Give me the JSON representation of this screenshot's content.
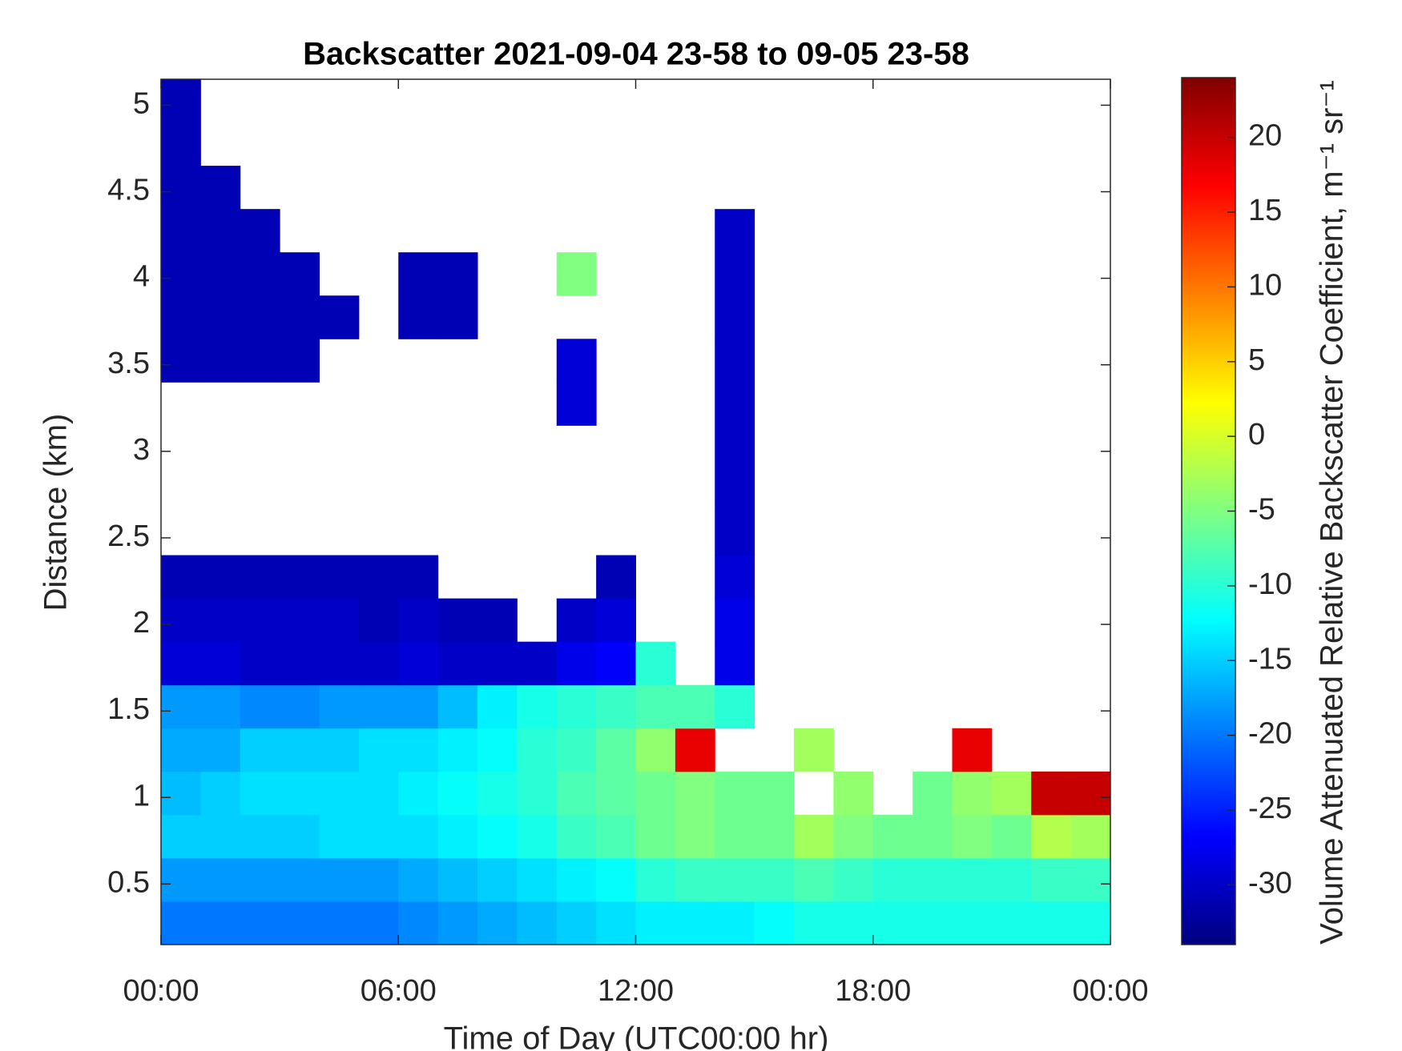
{
  "chart_data": {
    "type": "heatmap",
    "title": "Backscatter 2021-09-04 23-58 to 09-05 23-58",
    "xlabel": "Time of Day (UTC00:00 hr)",
    "ylabel": "Distance (km)",
    "colorbar_label": "Volume Attenuated Relative Backscatter Coefficient, m⁻¹ sr⁻¹",
    "colormap": "jet",
    "xlim": [
      0,
      24
    ],
    "xticks": [
      {
        "value": 0,
        "label": "00:00"
      },
      {
        "value": 6,
        "label": "06:00"
      },
      {
        "value": 12,
        "label": "12:00"
      },
      {
        "value": 18,
        "label": "18:00"
      },
      {
        "value": 24,
        "label": "00:00"
      }
    ],
    "ylim": [
      0.15,
      5.15
    ],
    "yticks": [
      0.5,
      1,
      1.5,
      2,
      2.5,
      3,
      3.5,
      4,
      4.5,
      5
    ],
    "clim": [
      -34,
      24
    ],
    "cticks": [
      -30,
      -25,
      -20,
      -15,
      -10,
      -5,
      0,
      5,
      10,
      15,
      20
    ],
    "x": [
      0.5,
      1.5,
      2.5,
      3.5,
      4.5,
      5.5,
      6.5,
      7.5,
      8.5,
      9.5,
      10.5,
      11.5,
      12.5,
      13.5,
      14.5,
      15.5,
      16.5,
      17.5,
      18.5,
      19.5,
      20.5,
      21.5,
      22.5,
      23.5
    ],
    "y": [
      0.275,
      0.525,
      0.775,
      1.025,
      1.275,
      1.525,
      1.775,
      2.025,
      2.275,
      2.525,
      2.775,
      3.025,
      3.275,
      3.525,
      3.775,
      4.025,
      4.275,
      4.525,
      4.775,
      5.025
    ],
    "z": [
      [
        -20,
        -20,
        -20,
        -20,
        -20,
        -20,
        -19,
        -18,
        -17,
        -16,
        -15,
        -14,
        -13,
        -13,
        -13,
        -12,
        -11,
        -11,
        -11,
        -11,
        -11,
        -11,
        -11,
        -11
      ],
      [
        -18,
        -18,
        -18,
        -18,
        -18,
        -18,
        -17,
        -16,
        -15,
        -14,
        -13,
        -12,
        -10,
        -9,
        -9,
        -9,
        -8,
        -9,
        -10,
        -10,
        -10,
        -10,
        -9,
        -9
      ],
      [
        -15,
        -15,
        -15,
        -15,
        -14,
        -14,
        -14,
        -13,
        -12,
        -11,
        -9,
        -8,
        -6,
        -5,
        -6,
        -6,
        -3,
        -5,
        -6,
        -6,
        -5,
        -6,
        -2,
        -3
      ],
      [
        -16,
        -15,
        -14,
        -14,
        -14,
        -14,
        -13,
        -12,
        -11,
        -10,
        -8,
        -7,
        -6,
        -5,
        -6,
        -6,
        null,
        -4,
        null,
        -6,
        -4,
        -3,
        20,
        20
      ],
      [
        -17,
        -17,
        -15,
        -15,
        -15,
        -14,
        -14,
        -13,
        -12,
        -10,
        -9,
        -7,
        -4,
        18,
        null,
        null,
        -3,
        null,
        null,
        null,
        18,
        null,
        null,
        null
      ],
      [
        -18,
        -18,
        -19,
        -19,
        -18,
        -18,
        -18,
        -16,
        -13,
        -11,
        -10,
        -9,
        -8,
        -8,
        -10,
        null,
        null,
        null,
        null,
        null,
        null,
        null,
        null,
        null
      ],
      [
        -29,
        -29,
        -30,
        -30,
        -30,
        -30,
        -29,
        -30,
        -30,
        -30,
        -28,
        -27,
        -10,
        null,
        -28,
        null,
        null,
        null,
        null,
        null,
        null,
        null,
        null,
        null
      ],
      [
        -30,
        -30,
        -30,
        -30,
        -30,
        -31,
        -30,
        -31,
        -31,
        null,
        -30,
        -29,
        null,
        null,
        -28,
        null,
        null,
        null,
        null,
        null,
        null,
        null,
        null,
        null
      ],
      [
        -31,
        -31,
        -31,
        -31,
        -31,
        -31,
        -31,
        null,
        null,
        null,
        null,
        -31,
        null,
        null,
        -29,
        null,
        null,
        null,
        null,
        null,
        null,
        null,
        null,
        null
      ],
      [
        null,
        null,
        null,
        null,
        null,
        null,
        null,
        null,
        null,
        null,
        null,
        null,
        null,
        null,
        -30,
        null,
        null,
        null,
        null,
        null,
        null,
        null,
        null,
        null
      ],
      [
        null,
        null,
        null,
        null,
        null,
        null,
        null,
        null,
        null,
        null,
        null,
        null,
        null,
        null,
        -30,
        null,
        null,
        null,
        null,
        null,
        null,
        null,
        null,
        null
      ],
      [
        null,
        null,
        null,
        null,
        null,
        null,
        null,
        null,
        null,
        null,
        null,
        null,
        null,
        null,
        -30,
        null,
        null,
        null,
        null,
        null,
        null,
        null,
        null,
        null
      ],
      [
        null,
        null,
        null,
        null,
        null,
        null,
        null,
        null,
        null,
        null,
        -29,
        null,
        null,
        null,
        -30,
        null,
        null,
        null,
        null,
        null,
        null,
        null,
        null,
        null
      ],
      [
        -31,
        -31,
        -31,
        -31,
        null,
        null,
        null,
        null,
        null,
        null,
        -29,
        null,
        null,
        null,
        -30,
        null,
        null,
        null,
        null,
        null,
        null,
        null,
        null,
        null
      ],
      [
        -31,
        -31,
        -31,
        -31,
        -31,
        null,
        -31,
        -31,
        null,
        null,
        null,
        null,
        null,
        null,
        -30,
        null,
        null,
        null,
        null,
        null,
        null,
        null,
        null,
        null
      ],
      [
        -31,
        -31,
        -31,
        -31,
        null,
        null,
        -31,
        -31,
        null,
        null,
        -5,
        null,
        null,
        null,
        -30,
        null,
        null,
        null,
        null,
        null,
        null,
        null,
        null,
        null
      ],
      [
        -31,
        -31,
        -31,
        null,
        null,
        null,
        null,
        null,
        null,
        null,
        null,
        null,
        null,
        null,
        -30,
        null,
        null,
        null,
        null,
        null,
        null,
        null,
        null,
        null
      ],
      [
        -31,
        -31,
        null,
        null,
        null,
        null,
        null,
        null,
        null,
        null,
        null,
        null,
        null,
        null,
        null,
        null,
        null,
        null,
        null,
        null,
        null,
        null,
        null,
        null
      ],
      [
        -31,
        null,
        null,
        null,
        null,
        null,
        null,
        null,
        null,
        null,
        null,
        null,
        null,
        null,
        null,
        null,
        null,
        null,
        null,
        null,
        null,
        null,
        null,
        null
      ],
      [
        -31,
        null,
        null,
        null,
        null,
        null,
        null,
        null,
        null,
        null,
        null,
        null,
        null,
        null,
        null,
        null,
        null,
        null,
        null,
        null,
        null,
        null,
        null,
        null
      ]
    ]
  }
}
